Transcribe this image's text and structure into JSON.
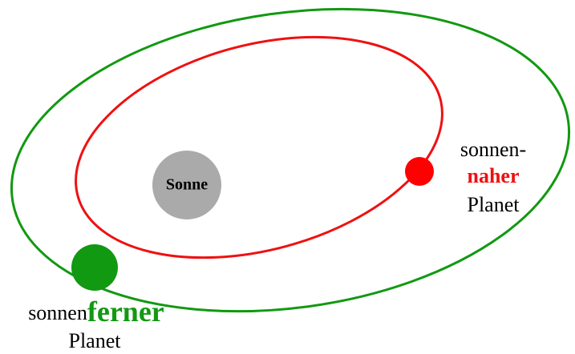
{
  "sun": {
    "label": "Sonne"
  },
  "near_planet": {
    "label": {
      "prefix": "sonnen-",
      "emphasis": "naher",
      "suffix": "Planet"
    }
  },
  "far_planet": {
    "label": {
      "prefix": "sonnen",
      "emphasis": "ferner",
      "suffix": "Planet"
    }
  }
}
